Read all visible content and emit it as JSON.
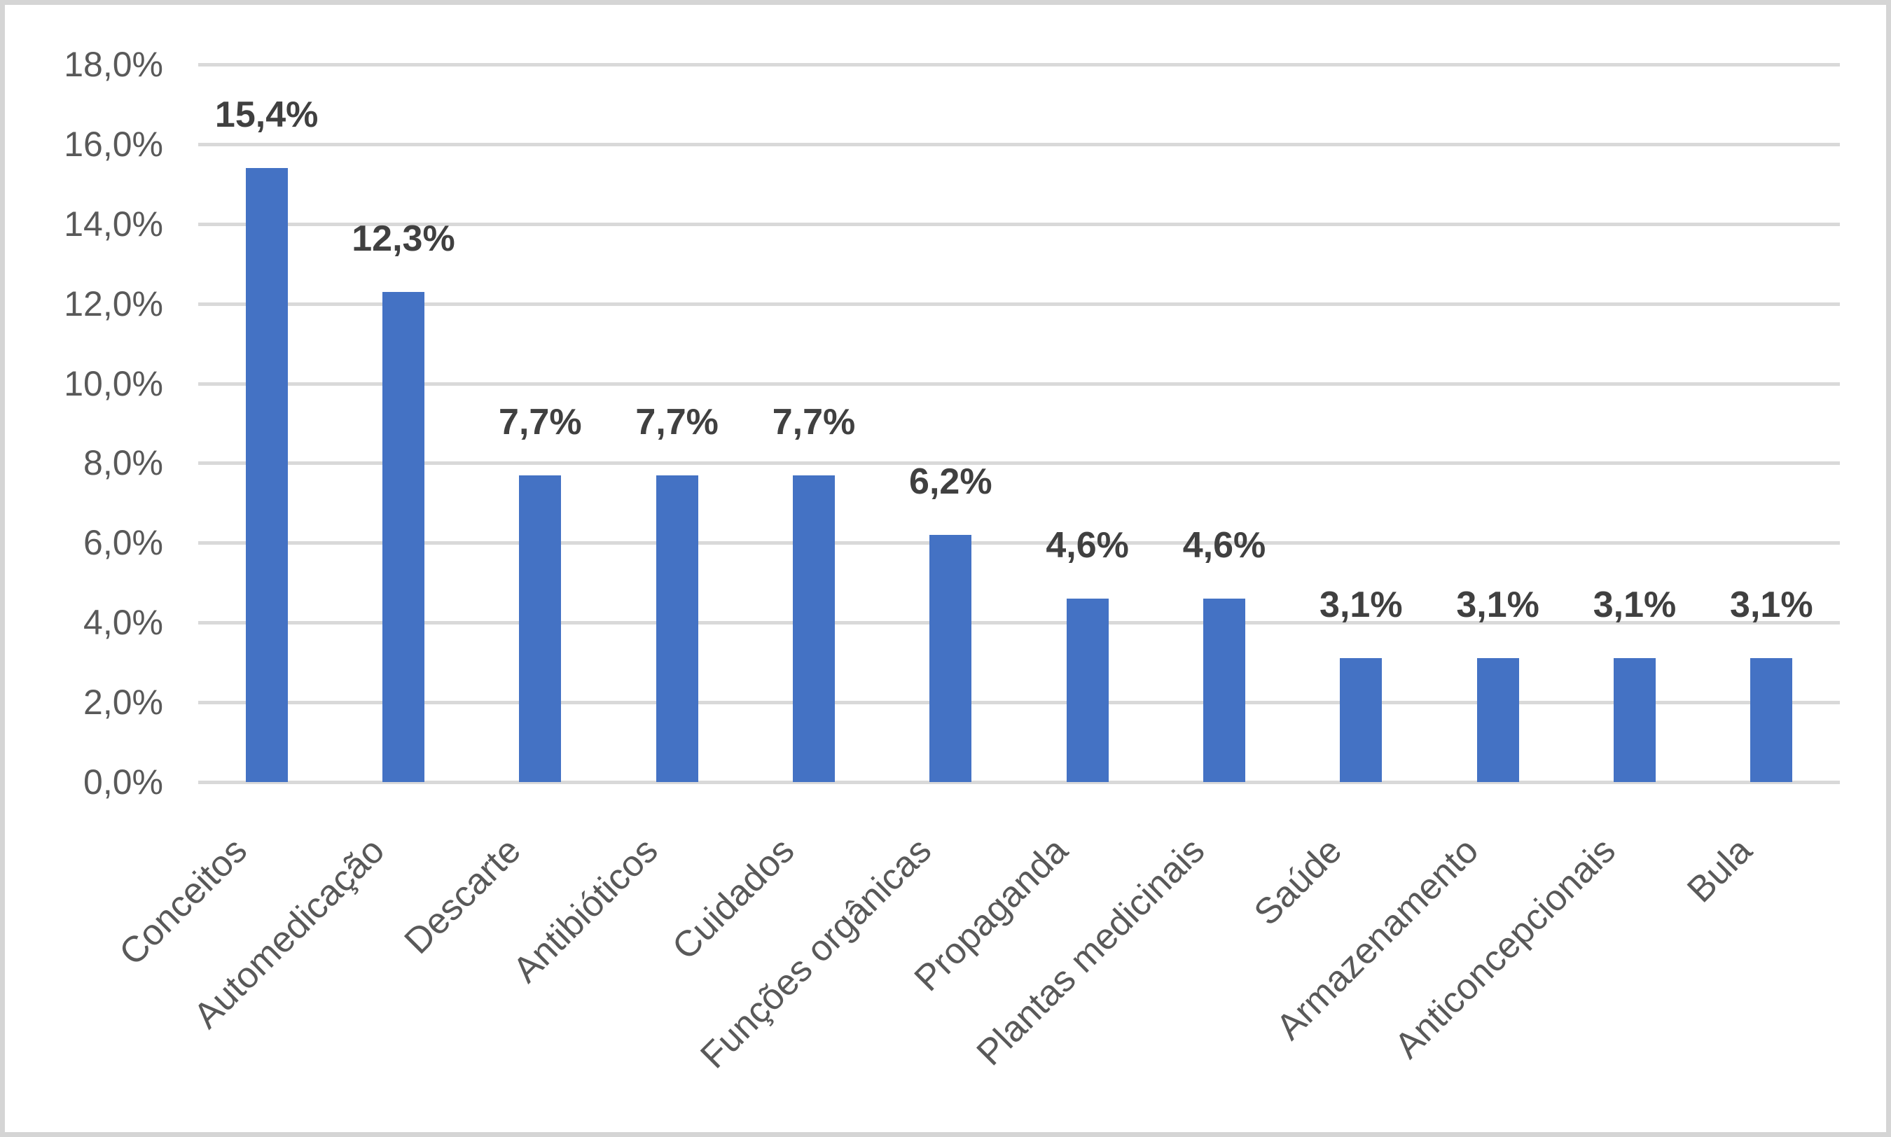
{
  "chart_data": {
    "type": "bar",
    "title": "",
    "xlabel": "",
    "ylabel": "",
    "categories": [
      "Conceitos",
      "Automedicação",
      "Descarte",
      "Antibióticos",
      "Cuidados",
      "Funções orgânicas",
      "Propaganda",
      "Plantas medicinais",
      "Saúde",
      "Armazenamento",
      "Anticoncepcionais",
      "Bula"
    ],
    "values": [
      15.4,
      12.3,
      7.7,
      7.7,
      7.7,
      6.2,
      4.6,
      4.6,
      3.1,
      3.1,
      3.1,
      3.1
    ],
    "data_labels": [
      "15,4%",
      "12,3%",
      "7,7%",
      "7,7%",
      "7,7%",
      "6,2%",
      "4,6%",
      "4,6%",
      "3,1%",
      "3,1%",
      "3,1%",
      "3,1%"
    ],
    "y_tick_labels": [
      "18,0%",
      "16,0%",
      "14,0%",
      "12,0%",
      "10,0%",
      "8,0%",
      "6,0%",
      "4,0%",
      "2,0%",
      "0,0%"
    ],
    "y_tick_values": [
      18,
      16,
      14,
      12,
      10,
      8,
      6,
      4,
      2,
      0
    ],
    "ylim": [
      0,
      18
    ],
    "grid": true,
    "legend": "none",
    "colors": {
      "bar": "#4472C4",
      "gridline": "#D9D9D9",
      "axis_text": "#595959",
      "data_label_text": "#404040",
      "frame_border": "#D5D5D5",
      "background": "#FFFFFF"
    }
  }
}
